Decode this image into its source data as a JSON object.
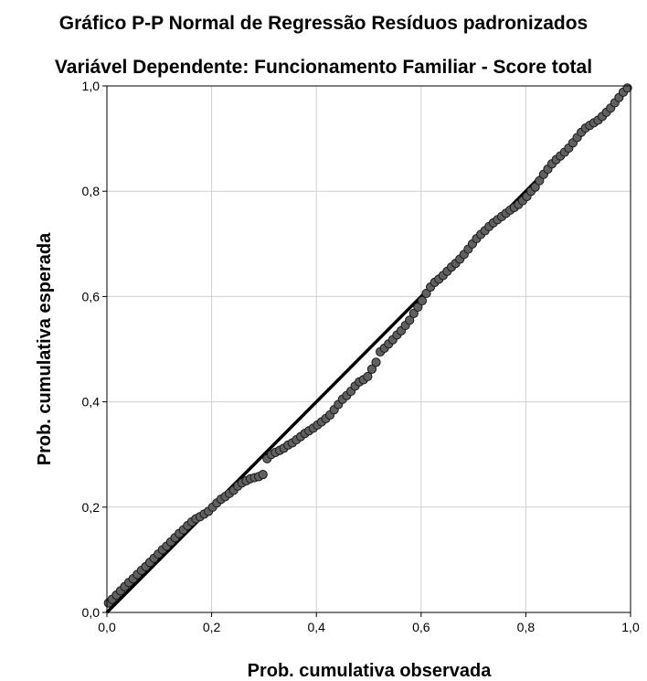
{
  "chart_data": {
    "type": "scatter",
    "title": "Gráfico P-P Normal de Regressão Resíduos padronizados",
    "subtitle": "Variável Dependente: Funcionamento Familiar - Score total",
    "xlabel": "Prob. cumulativa observada",
    "ylabel": "Prob. cumulativa esperada",
    "xlim": [
      0,
      1
    ],
    "ylim": [
      0,
      1
    ],
    "x_ticks": [
      "0,0",
      "0,2",
      "0,4",
      "0,6",
      "0,8",
      "1,0"
    ],
    "y_ticks": [
      "0,0",
      "0,2",
      "0,4",
      "0,6",
      "0,8",
      "1,0"
    ],
    "grid": true,
    "legend": "none",
    "reference_line": {
      "from": [
        0,
        0
      ],
      "to": [
        1,
        1
      ]
    },
    "point_color": "#606060",
    "point_stroke": "#1a1a1a",
    "line_color": "#000000",
    "series": [
      {
        "x": [
          0.003,
          0.01,
          0.018,
          0.026,
          0.034,
          0.042,
          0.05,
          0.058,
          0.066,
          0.074,
          0.082,
          0.09,
          0.098,
          0.106,
          0.114,
          0.122,
          0.13,
          0.138,
          0.146,
          0.154,
          0.162,
          0.17,
          0.178,
          0.186,
          0.194,
          0.202,
          0.21,
          0.218,
          0.226,
          0.234,
          0.242,
          0.25,
          0.258,
          0.266,
          0.274,
          0.282,
          0.29,
          0.298,
          0.306,
          0.314,
          0.322,
          0.33,
          0.338,
          0.346,
          0.354,
          0.362,
          0.37,
          0.378,
          0.386,
          0.394,
          0.402,
          0.41,
          0.418,
          0.426,
          0.434,
          0.442,
          0.45,
          0.458,
          0.466,
          0.474,
          0.482,
          0.49,
          0.498,
          0.506,
          0.514,
          0.522,
          0.53,
          0.538,
          0.546,
          0.554,
          0.562,
          0.57,
          0.578,
          0.586,
          0.594,
          0.602,
          0.61,
          0.618,
          0.626,
          0.634,
          0.642,
          0.65,
          0.658,
          0.666,
          0.674,
          0.682,
          0.69,
          0.698,
          0.706,
          0.714,
          0.722,
          0.73,
          0.738,
          0.746,
          0.754,
          0.762,
          0.77,
          0.778,
          0.786,
          0.794,
          0.802,
          0.81,
          0.818,
          0.826,
          0.834,
          0.842,
          0.85,
          0.858,
          0.866,
          0.874,
          0.882,
          0.89,
          0.898,
          0.906,
          0.914,
          0.922,
          0.93,
          0.938,
          0.946,
          0.954,
          0.962,
          0.97,
          0.978,
          0.986,
          0.994
        ],
        "y": [
          0.018,
          0.025,
          0.033,
          0.041,
          0.049,
          0.057,
          0.064,
          0.072,
          0.08,
          0.087,
          0.095,
          0.103,
          0.111,
          0.119,
          0.126,
          0.134,
          0.142,
          0.15,
          0.157,
          0.165,
          0.172,
          0.178,
          0.182,
          0.187,
          0.192,
          0.2,
          0.208,
          0.215,
          0.22,
          0.226,
          0.232,
          0.24,
          0.246,
          0.25,
          0.254,
          0.256,
          0.258,
          0.262,
          0.292,
          0.3,
          0.304,
          0.308,
          0.312,
          0.318,
          0.322,
          0.328,
          0.334,
          0.34,
          0.345,
          0.35,
          0.356,
          0.362,
          0.368,
          0.375,
          0.385,
          0.395,
          0.405,
          0.412,
          0.42,
          0.43,
          0.438,
          0.442,
          0.448,
          0.462,
          0.475,
          0.495,
          0.502,
          0.51,
          0.518,
          0.527,
          0.535,
          0.545,
          0.555,
          0.568,
          0.58,
          0.592,
          0.606,
          0.618,
          0.627,
          0.633,
          0.64,
          0.648,
          0.656,
          0.663,
          0.671,
          0.68,
          0.69,
          0.7,
          0.71,
          0.718,
          0.725,
          0.733,
          0.74,
          0.746,
          0.752,
          0.758,
          0.764,
          0.769,
          0.775,
          0.782,
          0.79,
          0.8,
          0.808,
          0.82,
          0.832,
          0.842,
          0.852,
          0.86,
          0.867,
          0.874,
          0.882,
          0.892,
          0.902,
          0.912,
          0.92,
          0.925,
          0.93,
          0.935,
          0.942,
          0.95,
          0.958,
          0.968,
          0.978,
          0.988,
          0.996
        ]
      }
    ]
  }
}
